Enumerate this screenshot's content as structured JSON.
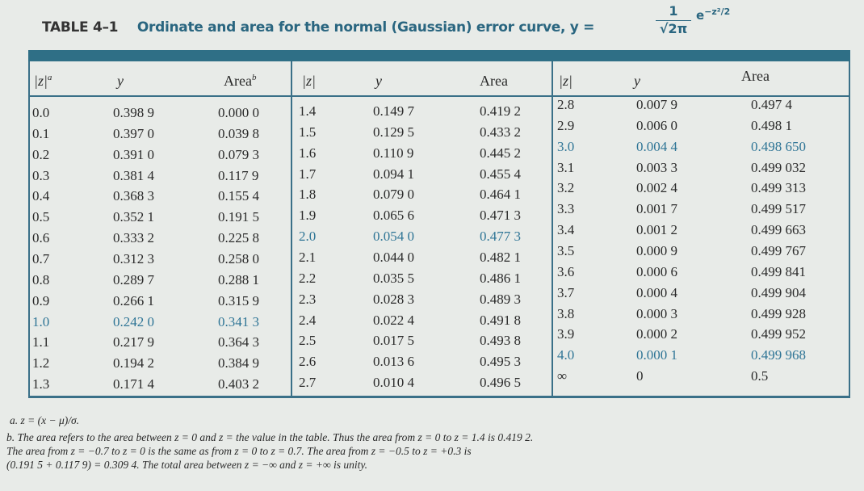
{
  "title": {
    "number": "TABLE 4–1",
    "text": "Ordinate and area for the normal (Gaussian) error curve, y =",
    "formula_num": "1",
    "formula_den": "√2π",
    "formula_exp": "e",
    "formula_sup": "−z²/2"
  },
  "headers": [
    {
      "z": "|z|",
      "z_sup": "a",
      "y": "y",
      "area": "Area",
      "area_sup": "b"
    },
    {
      "z": "|z|",
      "y": "y",
      "area": "Area"
    },
    {
      "z": "|z|",
      "y": "y",
      "area": "Area"
    }
  ],
  "highlight_color": "#2f7596",
  "blocks": [
    {
      "rows": [
        [
          "0.0",
          "0.398 9",
          "0.000 0"
        ],
        [
          "0.1",
          "0.397 0",
          "0.039 8"
        ],
        [
          "0.2",
          "0.391 0",
          "0.079 3"
        ],
        [
          "0.3",
          "0.381 4",
          "0.117 9"
        ],
        [
          "0.4",
          "0.368 3",
          "0.155 4"
        ],
        [
          "0.5",
          "0.352 1",
          "0.191 5"
        ],
        [
          "0.6",
          "0.333 2",
          "0.225 8"
        ],
        [
          "0.7",
          "0.312 3",
          "0.258 0"
        ],
        [
          "0.8",
          "0.289 7",
          "0.288 1"
        ],
        [
          "0.9",
          "0.266 1",
          "0.315 9"
        ],
        [
          "1.0",
          "0.242 0",
          "0.341 3"
        ],
        [
          "1.1",
          "0.217 9",
          "0.364 3"
        ],
        [
          "1.2",
          "0.194 2",
          "0.384 9"
        ],
        [
          "1.3",
          "0.171 4",
          "0.403 2"
        ]
      ],
      "highlight": [
        10
      ]
    },
    {
      "rows": [
        [
          "1.4",
          "0.149 7",
          "0.419 2"
        ],
        [
          "1.5",
          "0.129 5",
          "0.433 2"
        ],
        [
          "1.6",
          "0.110 9",
          "0.445 2"
        ],
        [
          "1.7",
          "0.094 1",
          "0.455 4"
        ],
        [
          "1.8",
          "0.079 0",
          "0.464 1"
        ],
        [
          "1.9",
          "0.065 6",
          "0.471 3"
        ],
        [
          "2.0",
          "0.054 0",
          "0.477 3"
        ],
        [
          "2.1",
          "0.044 0",
          "0.482 1"
        ],
        [
          "2.2",
          "0.035 5",
          "0.486 1"
        ],
        [
          "2.3",
          "0.028 3",
          "0.489 3"
        ],
        [
          "2.4",
          "0.022 4",
          "0.491 8"
        ],
        [
          "2.5",
          "0.017 5",
          "0.493 8"
        ],
        [
          "2.6",
          "0.013 6",
          "0.495 3"
        ],
        [
          "2.7",
          "0.010 4",
          "0.496 5"
        ]
      ],
      "highlight": [
        6
      ]
    },
    {
      "rows": [
        [
          "2.8",
          "0.007 9",
          "0.497 4"
        ],
        [
          "2.9",
          "0.006 0",
          "0.498 1"
        ],
        [
          "3.0",
          "0.004 4",
          "0.498 650"
        ],
        [
          "3.1",
          "0.003 3",
          "0.499 032"
        ],
        [
          "3.2",
          "0.002 4",
          "0.499 313"
        ],
        [
          "3.3",
          "0.001 7",
          "0.499 517"
        ],
        [
          "3.4",
          "0.001 2",
          "0.499 663"
        ],
        [
          "3.5",
          "0.000 9",
          "0.499 767"
        ],
        [
          "3.6",
          "0.000 6",
          "0.499 841"
        ],
        [
          "3.7",
          "0.000 4",
          "0.499 904"
        ],
        [
          "3.8",
          "0.000 3",
          "0.499 928"
        ],
        [
          "3.9",
          "0.000 2",
          "0.499 952"
        ],
        [
          "4.0",
          "0.000 1",
          "0.499 968"
        ],
        [
          "∞",
          "0",
          "0.5"
        ]
      ],
      "highlight": [
        2,
        12
      ]
    }
  ],
  "footnotes": [
    "a. z = (x − μ)/σ.",
    "b. The area refers to the area between z = 0 and z = the value in the table. Thus the area from z = 0 to z = 1.4 is 0.419 2.",
    "The area from z = −0.7 to z = 0 is the same as from z = 0 to z = 0.7. The area from z = −0.5 to z = +0.3 is",
    "(0.191 5 + 0.117 9) = 0.309 4. The total area between z = −∞ and z = +∞ is unity."
  ]
}
